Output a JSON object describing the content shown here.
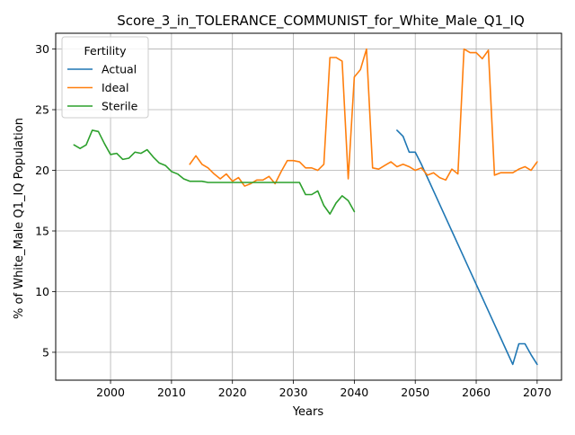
{
  "chart_data": {
    "type": "line",
    "title": "Score_3_in_TOLERANCE_COMMUNIST_for_White_Male_Q1_IQ",
    "xlabel": "Years",
    "ylabel": "% of White_Male Q1_IQ Population",
    "xlim": [
      1991,
      2074
    ],
    "ylim": [
      2.7,
      31.3
    ],
    "xticks": [
      2000,
      2010,
      2020,
      2030,
      2040,
      2050,
      2060,
      2070
    ],
    "yticks": [
      5,
      10,
      15,
      20,
      25,
      30
    ],
    "grid": true,
    "legend": {
      "title": "Fertility",
      "position": "top-left"
    },
    "colors": {
      "Actual": "#1f77b4",
      "Ideal": "#ff7f0e",
      "Sterile": "#2ca02c"
    },
    "series": [
      {
        "name": "Actual",
        "x": [
          2047,
          2048,
          2049,
          2050,
          2051,
          2052,
          2053,
          2054,
          2055,
          2056,
          2057,
          2058,
          2059,
          2060,
          2061,
          2062,
          2063,
          2064,
          2065,
          2066,
          2067,
          2068,
          2069,
          2070
        ],
        "y": [
          23.3,
          22.8,
          21.5,
          21.5,
          20.5,
          19.4,
          18.3,
          17.2,
          16.1,
          15.0,
          13.9,
          12.8,
          11.7,
          10.6,
          9.5,
          8.4,
          7.3,
          6.2,
          5.1,
          4.0,
          5.7,
          5.7,
          4.8,
          4.0
        ]
      },
      {
        "name": "Ideal",
        "x": [
          2013,
          2014,
          2015,
          2016,
          2017,
          2018,
          2019,
          2020,
          2021,
          2022,
          2023,
          2024,
          2025,
          2026,
          2027,
          2028,
          2029,
          2030,
          2031,
          2032,
          2033,
          2034,
          2035,
          2036,
          2037,
          2038,
          2039,
          2040,
          2041,
          2042,
          2043,
          2044,
          2045,
          2046,
          2047,
          2048,
          2049,
          2050,
          2051,
          2052,
          2053,
          2054,
          2055,
          2056,
          2057,
          2058,
          2059,
          2060,
          2061,
          2062,
          2063,
          2064,
          2065,
          2066,
          2067,
          2068,
          2069,
          2070
        ],
        "y": [
          20.5,
          21.2,
          20.5,
          20.2,
          19.7,
          19.3,
          19.7,
          19.1,
          19.4,
          18.7,
          18.9,
          19.2,
          19.2,
          19.5,
          18.9,
          19.9,
          20.8,
          20.8,
          20.7,
          20.2,
          20.2,
          20.0,
          20.5,
          29.3,
          29.3,
          29.0,
          19.3,
          27.7,
          28.3,
          30.0,
          20.2,
          20.1,
          20.4,
          20.7,
          20.3,
          20.5,
          20.3,
          20.0,
          20.2,
          19.6,
          19.8,
          19.4,
          19.2,
          20.1,
          19.7,
          30.0,
          29.7,
          29.7,
          29.2,
          29.9,
          19.6,
          19.8,
          19.8,
          19.8,
          20.1,
          20.3,
          20.0,
          20.7
        ]
      },
      {
        "name": "Sterile",
        "x": [
          1994,
          1995,
          1996,
          1997,
          1998,
          1999,
          2000,
          2001,
          2002,
          2003,
          2004,
          2005,
          2006,
          2007,
          2008,
          2009,
          2010,
          2011,
          2012,
          2013,
          2014,
          2015,
          2016,
          2017,
          2018,
          2019,
          2020,
          2021,
          2022,
          2023,
          2024,
          2025,
          2026,
          2027,
          2028,
          2029,
          2030,
          2031,
          2032,
          2033,
          2034,
          2035,
          2036,
          2037,
          2038,
          2039,
          2040
        ],
        "y": [
          22.1,
          21.8,
          22.1,
          23.3,
          23.2,
          22.2,
          21.3,
          21.4,
          20.9,
          21.0,
          21.5,
          21.4,
          21.7,
          21.1,
          20.6,
          20.4,
          19.9,
          19.7,
          19.3,
          19.1,
          19.1,
          19.1,
          19.0,
          19.0,
          19.0,
          19.0,
          19.0,
          19.0,
          19.0,
          19.0,
          19.0,
          19.0,
          19.0,
          19.0,
          19.0,
          19.0,
          19.0,
          19.0,
          18.0,
          18.0,
          18.3,
          17.1,
          16.4,
          17.3,
          17.9,
          17.5,
          16.6
        ]
      }
    ]
  }
}
